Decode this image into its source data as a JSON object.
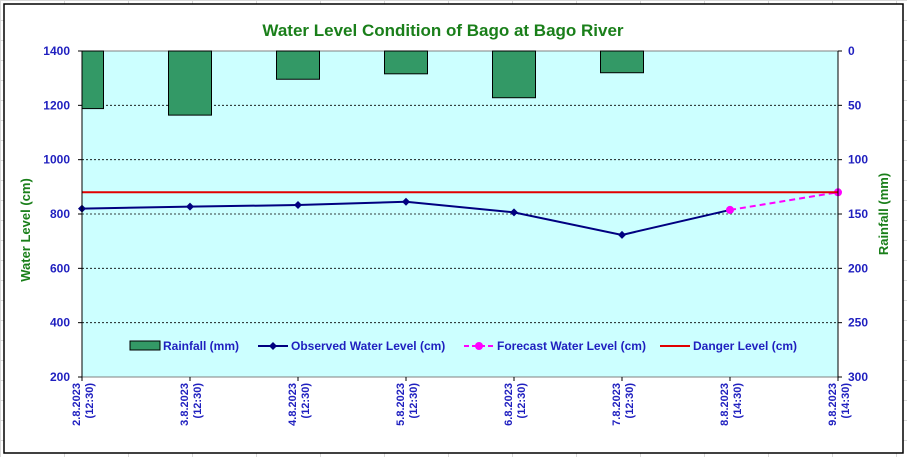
{
  "chart_data": {
    "type": "bar+line",
    "title": "Water Level Condition of Bago at Bago River",
    "ylabel_left": "Water Level (cm)",
    "ylabel_right": "Rainfall (mm)",
    "ylim_left": [
      200,
      1400
    ],
    "yticks_left": [
      "200",
      "400",
      "600",
      "800",
      "1000",
      "1200",
      "1400"
    ],
    "ylim_right": [
      0,
      300
    ],
    "yticks_right": [
      "0",
      "50",
      "100",
      "150",
      "200",
      "250",
      "300"
    ],
    "right_axis_inverted": true,
    "categories": [
      [
        "2.8.2023",
        "(12:30)"
      ],
      [
        "3.8.2023",
        "(12:30)"
      ],
      [
        "4.8.2023",
        "(12:30)"
      ],
      [
        "5.8.2023",
        "(12:30)"
      ],
      [
        "6.8.2023",
        "(12:30)"
      ],
      [
        "7.8.2023",
        "(12:30)"
      ],
      [
        "8.8.2023",
        "(14:30)"
      ],
      [
        "9.8.2023",
        "(14:30)"
      ]
    ],
    "series": [
      {
        "name": "Rainfall (mm)",
        "kind": "bar",
        "axis": "right",
        "color": "#339966",
        "values": [
          53,
          59,
          26,
          21,
          43,
          20,
          null,
          null
        ]
      },
      {
        "name": "Observed Water Level (cm)",
        "kind": "line",
        "axis": "left",
        "color": "#000080",
        "values": [
          820,
          827,
          833,
          845,
          806,
          723,
          815,
          null
        ]
      },
      {
        "name": "Forecast Water Level (cm)",
        "kind": "dashed-line",
        "axis": "left",
        "color": "#ff00ff",
        "values": [
          null,
          null,
          null,
          null,
          null,
          null,
          815,
          880
        ]
      },
      {
        "name": "Danger Level (cm)",
        "kind": "hline",
        "axis": "left",
        "color": "#e00000",
        "values": [
          880,
          880,
          880,
          880,
          880,
          880,
          880,
          880
        ]
      }
    ],
    "grid": "horizontal dashed",
    "legend_position": "bottom inside plot",
    "plot_background": "#ccffff"
  }
}
